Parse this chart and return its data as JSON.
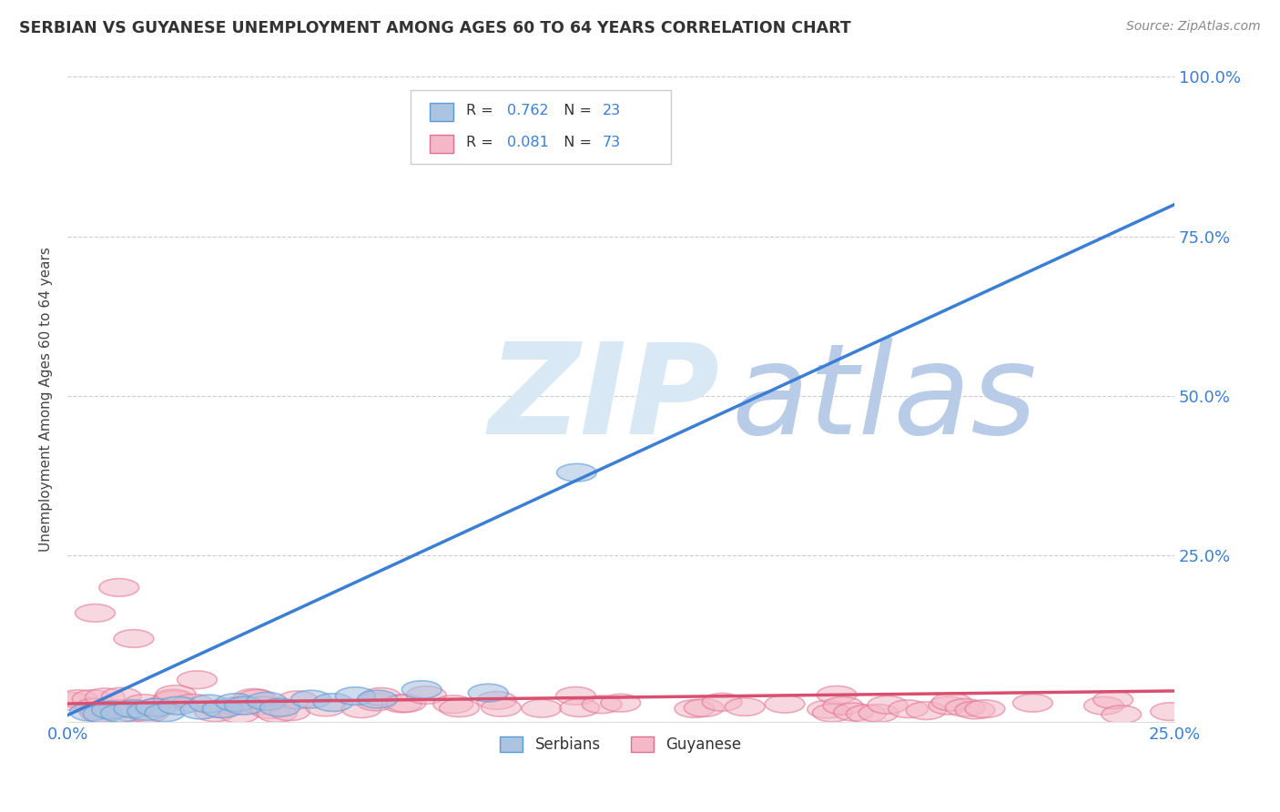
{
  "title": "SERBIAN VS GUYANESE UNEMPLOYMENT AMONG AGES 60 TO 64 YEARS CORRELATION CHART",
  "source": "Source: ZipAtlas.com",
  "ylabel": "Unemployment Among Ages 60 to 64 years",
  "xlim": [
    0.0,
    0.25
  ],
  "ylim": [
    -0.01,
    1.0
  ],
  "xticks": [
    0.0,
    0.05,
    0.1,
    0.15,
    0.2,
    0.25
  ],
  "yticks": [
    0.25,
    0.5,
    0.75,
    1.0
  ],
  "ytick_labels": [
    "25.0%",
    "50.0%",
    "75.0%",
    "100.0%"
  ],
  "xtick_labels": [
    "0.0%",
    "",
    "",
    "",
    "",
    "25.0%"
  ],
  "serbian_color": "#aac4e2",
  "serbian_edge_color": "#5b9bd5",
  "guyanese_color": "#f4b8c8",
  "guyanese_edge_color": "#e07090",
  "serbian_R": 0.762,
  "serbian_N": 23,
  "guyanese_R": 0.081,
  "guyanese_N": 73,
  "regression_serbian_color": "#3b7fd4",
  "regression_guyanese_color": "#d94f70",
  "watermark_zip_color": "#d8e8f4",
  "watermark_atlas_color": "#b8cce8",
  "background_color": "#ffffff",
  "grid_color": "#cccccc",
  "legend_border_color": "#cccccc",
  "title_color": "#333333",
  "source_color": "#888888",
  "tick_color": "#3b7fd4",
  "ylabel_color": "#444444",
  "serbian_line_x": [
    0.0,
    0.25
  ],
  "serbian_line_y": [
    0.0,
    0.8
  ],
  "guyanese_line_x": [
    0.0,
    0.25
  ],
  "guyanese_line_y": [
    0.018,
    0.038
  ]
}
